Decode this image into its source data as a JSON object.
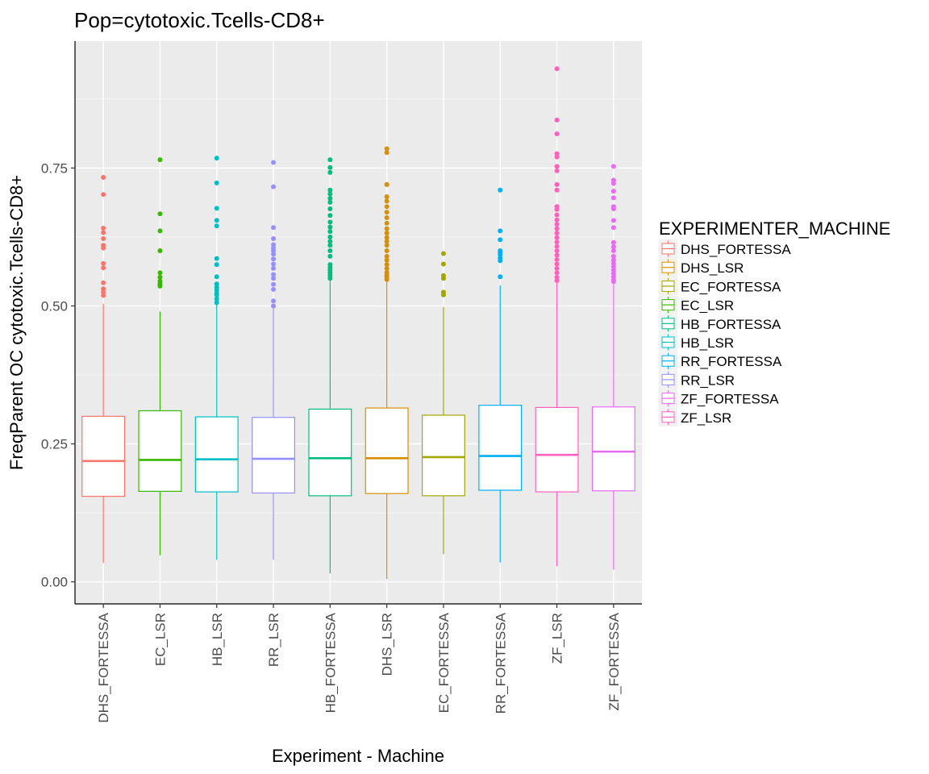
{
  "chart_data": {
    "type": "box",
    "title": "Pop=cytotoxic.Tcells-CD8+",
    "xlabel": "Experiment - Machine",
    "ylabel": "FreqParent OC  cytotoxic.Tcells-CD8+",
    "ylim": [
      -0.04,
      0.98
    ],
    "yticks": [
      0.0,
      0.25,
      0.5,
      0.75
    ],
    "ytick_labels": [
      "0.00",
      "0.25",
      "0.50",
      "0.75"
    ],
    "grid": true,
    "legend": {
      "title": "EXPERIMENTER_MACHINE",
      "position": "right",
      "entries": [
        {
          "label": "DHS_FORTESSA",
          "color": "#F8766D"
        },
        {
          "label": "DHS_LSR",
          "color": "#D89000"
        },
        {
          "label": "EC_FORTESSA",
          "color": "#A3A500"
        },
        {
          "label": "EC_LSR",
          "color": "#39B600"
        },
        {
          "label": "HB_FORTESSA",
          "color": "#00BF7D"
        },
        {
          "label": "HB_LSR",
          "color": "#00BFC4"
        },
        {
          "label": "RR_FORTESSA",
          "color": "#00B0F6"
        },
        {
          "label": "RR_LSR",
          "color": "#9590FF"
        },
        {
          "label": "ZF_FORTESSA",
          "color": "#E76BF3"
        },
        {
          "label": "ZF_LSR",
          "color": "#FF62BC"
        }
      ]
    },
    "categories": [
      "DHS_FORTESSA",
      "EC_LSR",
      "HB_LSR",
      "RR_LSR",
      "HB_FORTESSA",
      "DHS_LSR",
      "EC_FORTESSA",
      "RR_FORTESSA",
      "ZF_LSR",
      "ZF_FORTESSA"
    ],
    "boxes": [
      {
        "name": "DHS_FORTESSA",
        "color": "#F8766D",
        "min": 0.034,
        "q1": 0.155,
        "median": 0.219,
        "q3": 0.3,
        "max": 0.504,
        "outliers": [
          0.733,
          0.702,
          0.641,
          0.633,
          0.622,
          0.61,
          0.605,
          0.577,
          0.569,
          0.542,
          0.531,
          0.525,
          0.519
        ]
      },
      {
        "name": "EC_LSR",
        "color": "#39B600",
        "min": 0.048,
        "q1": 0.164,
        "median": 0.221,
        "q3": 0.31,
        "max": 0.49,
        "outliers": [
          0.765,
          0.667,
          0.636,
          0.6,
          0.56,
          0.552,
          0.545,
          0.54,
          0.536
        ]
      },
      {
        "name": "HB_LSR",
        "color": "#00BFC4",
        "min": 0.04,
        "q1": 0.163,
        "median": 0.222,
        "q3": 0.299,
        "max": 0.502,
        "outliers": [
          0.768,
          0.723,
          0.677,
          0.655,
          0.645,
          0.586,
          0.575,
          0.553,
          0.54,
          0.534,
          0.529,
          0.523,
          0.52,
          0.513,
          0.506
        ]
      },
      {
        "name": "RR_LSR",
        "color": "#9590FF",
        "min": 0.04,
        "q1": 0.161,
        "median": 0.223,
        "q3": 0.298,
        "max": 0.496,
        "outliers": [
          0.76,
          0.716,
          0.642,
          0.622,
          0.611,
          0.605,
          0.6,
          0.594,
          0.585,
          0.576,
          0.568,
          0.557,
          0.55,
          0.539,
          0.53,
          0.509,
          0.5
        ]
      },
      {
        "name": "HB_FORTESSA",
        "color": "#00BF7D",
        "min": 0.015,
        "q1": 0.156,
        "median": 0.224,
        "q3": 0.313,
        "max": 0.546,
        "outliers": [
          0.765,
          0.751,
          0.742,
          0.71,
          0.703,
          0.695,
          0.688,
          0.676,
          0.664,
          0.652,
          0.643,
          0.635,
          0.625,
          0.617,
          0.61,
          0.6,
          0.59,
          0.575,
          0.57,
          0.565,
          0.56,
          0.555,
          0.55
        ]
      },
      {
        "name": "DHS_LSR",
        "color": "#D89000",
        "min": 0.005,
        "q1": 0.16,
        "median": 0.224,
        "q3": 0.315,
        "max": 0.547,
        "outliers": [
          0.785,
          0.778,
          0.72,
          0.698,
          0.69,
          0.68,
          0.67,
          0.66,
          0.65,
          0.64,
          0.632,
          0.624,
          0.617,
          0.61,
          0.6,
          0.59,
          0.583,
          0.575,
          0.568,
          0.561,
          0.556,
          0.552,
          0.548
        ]
      },
      {
        "name": "EC_FORTESSA",
        "color": "#A3A500",
        "min": 0.05,
        "q1": 0.156,
        "median": 0.226,
        "q3": 0.302,
        "max": 0.498,
        "outliers": [
          0.595,
          0.576,
          0.555,
          0.55,
          0.525,
          0.52
        ]
      },
      {
        "name": "RR_FORTESSA",
        "color": "#00B0F6",
        "min": 0.035,
        "q1": 0.166,
        "median": 0.228,
        "q3": 0.32,
        "max": 0.537,
        "outliers": [
          0.71,
          0.636,
          0.62,
          0.6,
          0.597,
          0.593,
          0.587,
          0.582,
          0.553
        ]
      },
      {
        "name": "ZF_LSR",
        "color": "#FF62BC",
        "min": 0.028,
        "q1": 0.163,
        "median": 0.23,
        "q3": 0.316,
        "max": 0.542,
        "outliers": [
          0.93,
          0.837,
          0.812,
          0.776,
          0.77,
          0.753,
          0.745,
          0.72,
          0.71,
          0.68,
          0.675,
          0.665,
          0.656,
          0.648,
          0.64,
          0.632,
          0.624,
          0.616,
          0.608,
          0.6,
          0.592,
          0.584,
          0.576,
          0.568,
          0.56,
          0.552,
          0.546
        ]
      },
      {
        "name": "ZF_FORTESSA",
        "color": "#E76BF3",
        "min": 0.022,
        "q1": 0.165,
        "median": 0.236,
        "q3": 0.317,
        "max": 0.54,
        "outliers": [
          0.753,
          0.728,
          0.722,
          0.708,
          0.696,
          0.68,
          0.676,
          0.655,
          0.642,
          0.615,
          0.607,
          0.6,
          0.59,
          0.583,
          0.577,
          0.571,
          0.565,
          0.559,
          0.553,
          0.547,
          0.544
        ]
      }
    ]
  }
}
